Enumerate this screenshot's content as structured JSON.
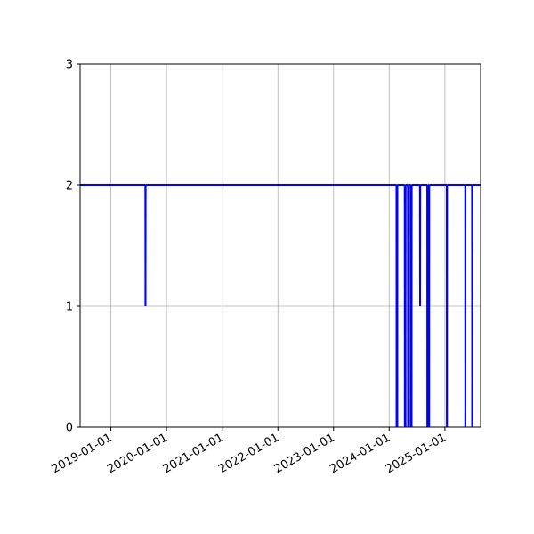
{
  "colors": {
    "series": "#0000ff",
    "grid": "#b0b0b0",
    "axis": "#000000",
    "background": "#ffffff"
  },
  "chart_data": {
    "type": "line",
    "title": "",
    "xlabel": "",
    "ylabel": "",
    "grid": true,
    "x_axis_type": "date",
    "xlim": [
      "2018-06-13",
      "2025-08-23"
    ],
    "ylim": [
      0,
      3
    ],
    "x_ticks": [
      "2019-01-01",
      "2020-01-01",
      "2021-01-01",
      "2022-01-01",
      "2023-01-01",
      "2024-01-01",
      "2025-01-01"
    ],
    "y_ticks": [
      0,
      1,
      2,
      3
    ],
    "series": [
      {
        "points": [
          [
            "2018-06-13",
            2
          ],
          [
            "2019-08-15",
            2
          ],
          [
            "2019-08-16",
            1
          ],
          [
            "2019-08-17",
            2
          ],
          [
            "2024-02-18",
            2
          ],
          [
            "2024-02-19",
            0
          ],
          [
            "2024-02-20",
            2
          ],
          [
            "2024-02-22",
            2
          ],
          [
            "2024-02-23",
            0
          ],
          [
            "2024-02-24",
            2
          ],
          [
            "2024-04-12",
            2
          ],
          [
            "2024-04-13",
            0
          ],
          [
            "2024-04-14",
            2
          ],
          [
            "2024-04-16",
            2
          ],
          [
            "2024-04-17",
            0
          ],
          [
            "2024-04-18",
            2
          ],
          [
            "2024-05-03",
            2
          ],
          [
            "2024-05-04",
            0
          ],
          [
            "2024-05-05",
            2
          ],
          [
            "2024-05-20",
            2
          ],
          [
            "2024-05-21",
            0
          ],
          [
            "2024-05-22",
            2
          ],
          [
            "2024-05-26",
            2
          ],
          [
            "2024-05-27",
            0
          ],
          [
            "2024-05-28",
            2
          ],
          [
            "2024-07-21",
            2
          ],
          [
            "2024-07-22",
            1
          ],
          [
            "2024-07-23",
            2
          ],
          [
            "2024-09-07",
            2
          ],
          [
            "2024-09-08",
            0
          ],
          [
            "2024-09-09",
            2
          ],
          [
            "2024-09-11",
            2
          ],
          [
            "2024-09-12",
            0
          ],
          [
            "2024-09-13",
            2
          ],
          [
            "2024-09-18",
            2
          ],
          [
            "2024-09-19",
            0
          ],
          [
            "2024-09-20",
            2
          ],
          [
            "2025-01-13",
            2
          ],
          [
            "2025-01-14",
            0
          ],
          [
            "2025-01-15",
            2
          ],
          [
            "2025-05-14",
            2
          ],
          [
            "2025-05-15",
            0
          ],
          [
            "2025-05-16",
            2
          ],
          [
            "2025-06-28",
            2
          ],
          [
            "2025-06-29",
            0
          ],
          [
            "2025-06-30",
            2
          ],
          [
            "2025-08-23",
            2
          ]
        ]
      }
    ]
  }
}
